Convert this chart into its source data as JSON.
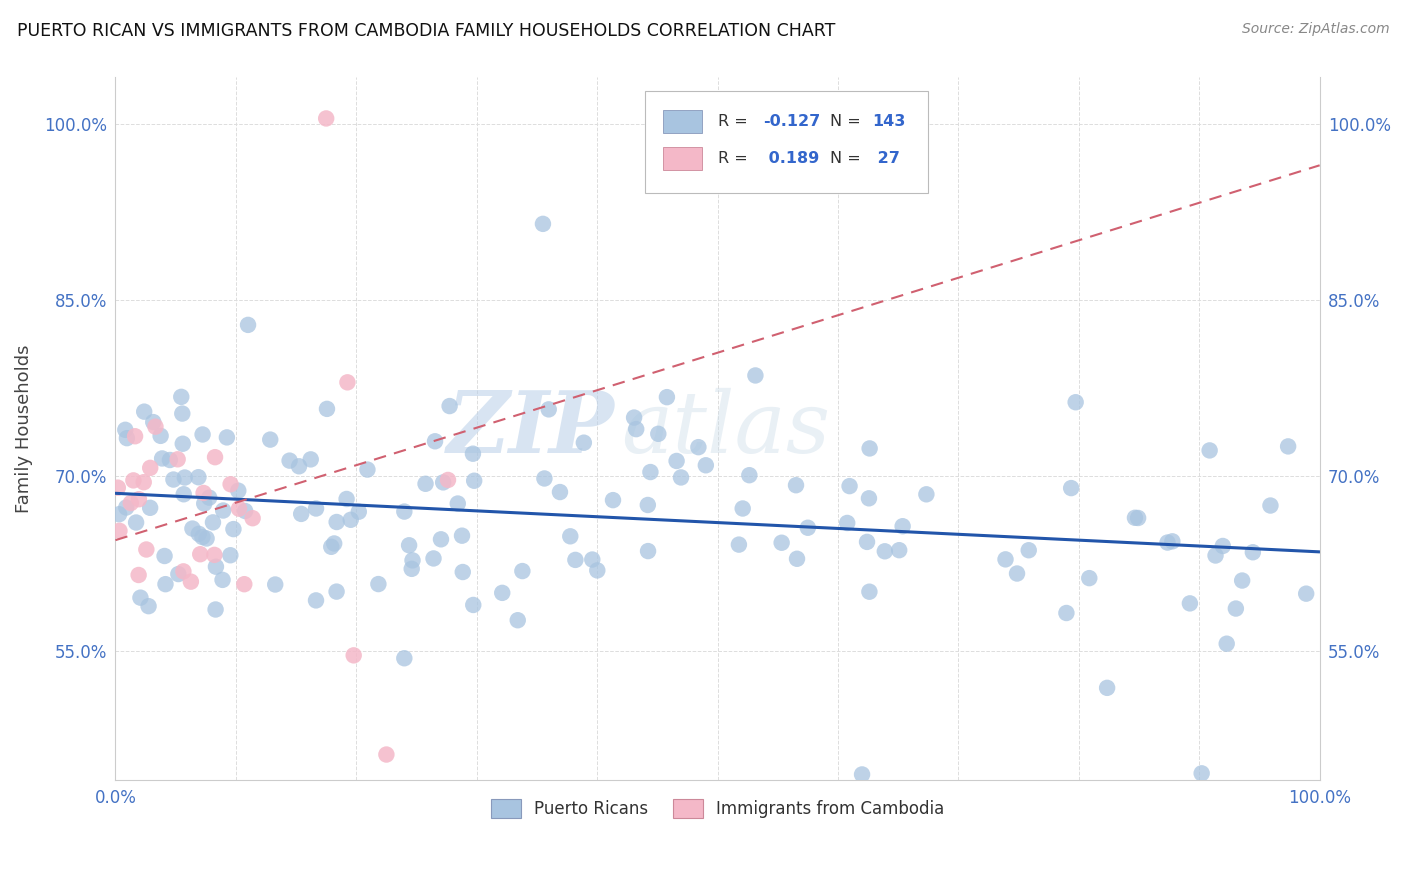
{
  "title": "PUERTO RICAN VS IMMIGRANTS FROM CAMBODIA FAMILY HOUSEHOLDS CORRELATION CHART",
  "source": "Source: ZipAtlas.com",
  "ylabel": "Family Households",
  "blue_R": -0.127,
  "blue_N": 143,
  "pink_R": 0.189,
  "pink_N": 27,
  "blue_color": "#a8c4e0",
  "blue_line_color": "#2255aa",
  "pink_color": "#f4b8c8",
  "pink_line_color": "#d06070",
  "watermark_zip": "ZIP",
  "watermark_atlas": "atlas",
  "xlim": [
    0.0,
    1.0
  ],
  "ylim": [
    0.44,
    1.04
  ],
  "yticks": [
    0.55,
    0.7,
    0.85,
    1.0
  ],
  "ytick_labels": [
    "55.0%",
    "70.0%",
    "85.0%",
    "100.0%"
  ],
  "xtick_labels": [
    "0.0%",
    "100.0%"
  ],
  "background_color": "#ffffff",
  "grid_color": "#dddddd",
  "legend_r1": "R = -0.127",
  "legend_n1": "N = 143",
  "legend_r2": "R =  0.189",
  "legend_n2": "N =  27"
}
